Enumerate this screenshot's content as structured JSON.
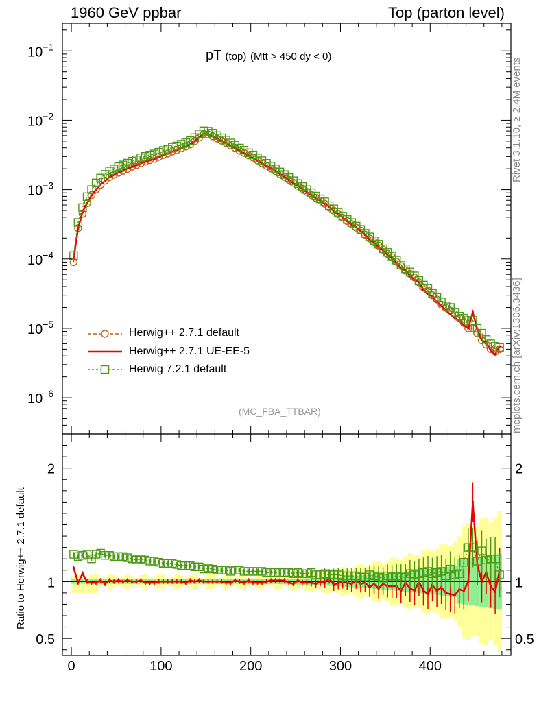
{
  "header": {
    "left": "1960 GeV ppbar",
    "right": "Top (parton level)"
  },
  "side_labels": {
    "rivet": "Rivet 3.1.10, ≥ 2.4M events",
    "mcplots": "mcplots.cern.ch [arXiv:1306.3436]"
  },
  "plot_title": {
    "main": "pT",
    "sub1": "(top)",
    "sub2": "(Mtt > 450 dy < 0)"
  },
  "analysis_label": "(MC_FBA_TTBAR)",
  "ratio_ylabel": "Ratio to Herwig++ 2.7.1 default",
  "colors": {
    "herwigpp_default": "#b8651a",
    "herwigpp_ueee5": "#ee0000",
    "herwig7": "#4c9a14",
    "band_inner": "#90ee90",
    "band_outer": "#ffff99"
  },
  "chart_data": {
    "type": "line",
    "x_range": [
      -10,
      490
    ],
    "main_ylim": [
      3e-07,
      0.25
    ],
    "main_yscale": "log",
    "ratio_ylim": [
      0.35,
      2.3
    ],
    "legend_placement": "bottom-left",
    "legend": [
      {
        "name": "Herwig++ 2.7.1 default",
        "series": "herwigpp_default"
      },
      {
        "name": "Herwig++ 2.7.1 UE-EE-5",
        "series": "herwigpp_ueee5"
      },
      {
        "name": "Herwig 7.2.1 default",
        "series": "herwig7"
      }
    ],
    "x_ticks": [
      {
        "value": 0,
        "label": "0"
      },
      {
        "value": 100,
        "label": "100"
      },
      {
        "value": 200,
        "label": "200"
      },
      {
        "value": 300,
        "label": "300"
      },
      {
        "value": 400,
        "label": "400"
      }
    ],
    "main_y_ticks": [
      {
        "value": 1e-06,
        "base": "10",
        "exp": "−6"
      },
      {
        "value": 1e-05,
        "base": "10",
        "exp": "−5"
      },
      {
        "value": 0.0001,
        "base": "10",
        "exp": "−4"
      },
      {
        "value": 0.001,
        "base": "10",
        "exp": "−3"
      },
      {
        "value": 0.01,
        "base": "10",
        "exp": "−2"
      },
      {
        "value": 0.1,
        "base": "10",
        "exp": "−1"
      }
    ],
    "ratio_y_ticks": [
      {
        "value": 0.5,
        "label": "0.5"
      },
      {
        "value": 1,
        "label": "1"
      },
      {
        "value": 2,
        "label": "2"
      }
    ],
    "x": [
      2.5,
      7.5,
      12.5,
      17.5,
      22.5,
      27.5,
      32.5,
      37.5,
      42.5,
      47.5,
      52.5,
      57.5,
      62.5,
      67.5,
      72.5,
      77.5,
      82.5,
      87.5,
      92.5,
      97.5,
      102.5,
      107.5,
      112.5,
      117.5,
      122.5,
      127.5,
      132.5,
      137.5,
      142.5,
      147.5,
      152.5,
      157.5,
      162.5,
      167.5,
      172.5,
      177.5,
      182.5,
      187.5,
      192.5,
      197.5,
      202.5,
      207.5,
      212.5,
      217.5,
      222.5,
      227.5,
      232.5,
      237.5,
      242.5,
      247.5,
      252.5,
      257.5,
      262.5,
      267.5,
      272.5,
      277.5,
      282.5,
      287.5,
      292.5,
      297.5,
      302.5,
      307.5,
      312.5,
      317.5,
      322.5,
      327.5,
      332.5,
      337.5,
      342.5,
      347.5,
      352.5,
      357.5,
      362.5,
      367.5,
      372.5,
      377.5,
      382.5,
      387.5,
      392.5,
      397.5,
      402.5,
      407.5,
      412.5,
      417.5,
      422.5,
      427.5,
      432.5,
      437.5,
      442.5,
      447.5,
      452.5,
      457.5,
      462.5,
      467.5,
      472.5,
      477.5
    ],
    "series": [
      {
        "key": "herwigpp_default",
        "name": "Herwig++ 2.7.1 default",
        "style": "dashed-circle",
        "values": [
          9e-05,
          0.000278,
          0.000448,
          0.000637,
          0.000834,
          0.001005,
          0.001174,
          0.001346,
          0.001511,
          0.001634,
          0.001753,
          0.001863,
          0.001993,
          0.002136,
          0.002255,
          0.002402,
          0.002535,
          0.002665,
          0.002779,
          0.002962,
          0.003147,
          0.00331,
          0.003534,
          0.003712,
          0.003949,
          0.004176,
          0.004471,
          0.004975,
          0.005628,
          0.006332,
          0.006227,
          0.005871,
          0.005446,
          0.005077,
          0.004702,
          0.004318,
          0.003985,
          0.003629,
          0.003378,
          0.003117,
          0.002894,
          0.002635,
          0.002406,
          0.002209,
          0.002013,
          0.001848,
          0.001667,
          0.001525,
          0.001385,
          0.001251,
          0.001136,
          0.001032,
          0.000929,
          0.000838,
          0.000759,
          0.000694,
          0.000626,
          0.000552,
          0.000499,
          0.000445,
          0.000394,
          0.000352,
          0.000319,
          0.000283,
          0.000256,
          0.000224,
          0.000197,
          0.000175,
          0.000156,
          0.000136,
          0.000118,
          0.000106,
          9.1e-05,
          7.9e-05,
          6.9e-05,
          6.1e-05,
          5.4e-05,
          4.6e-05,
          3.9e-05,
          3.5e-05,
          3e-05,
          2.6e-05,
          2.2e-05,
          2e-05,
          1.8e-05,
          1.6e-05,
          1.4e-05,
          1.2e-05,
          1e-05,
          1e-05,
          8.5e-06,
          6.7e-06,
          5.8e-06,
          5e-06,
          4.6e-06,
          5e-06
        ]
      },
      {
        "key": "herwigpp_ueee5",
        "name": "Herwig++ 2.7.1 UE-EE-5",
        "style": "solid",
        "values": [
          0.000101,
          0.000275,
          0.000481,
          0.000634,
          0.000827,
          0.000999,
          0.001186,
          0.001324,
          0.001521,
          0.001632,
          0.00177,
          0.001872,
          0.002011,
          0.00213,
          0.00225,
          0.002416,
          0.002522,
          0.002648,
          0.002755,
          0.002958,
          0.003153,
          0.003305,
          0.003541,
          0.003714,
          0.003961,
          0.004146,
          0.004506,
          0.00497,
          0.005657,
          0.006341,
          0.006209,
          0.005854,
          0.005457,
          0.005068,
          0.004679,
          0.004283,
          0.004021,
          0.003636,
          0.003344,
          0.003152,
          0.002867,
          0.002617,
          0.002381,
          0.002205,
          0.002043,
          0.001862,
          0.001682,
          0.001544,
          0.001376,
          0.001229,
          0.001147,
          0.001021,
          0.000919,
          0.000833,
          0.000747,
          0.000696,
          0.000623,
          0.000568,
          0.000485,
          0.000442,
          0.000394,
          0.00035,
          0.000312,
          0.000286,
          0.000252,
          0.000222,
          0.000187,
          0.000171,
          0.000147,
          0.000133,
          0.000113,
          0.000102,
          8.7e-05,
          7.3e-05,
          6.8e-05,
          5.7e-05,
          5e-05,
          4.6e-05,
          3.6e-05,
          3.1e-05,
          2.9e-05,
          2.4e-05,
          2.1e-05,
          1.8e-05,
          1.6e-05,
          1.4e-05,
          1.3e-05,
          1.1e-05,
          1e-05,
          1.7e-05,
          9.8e-06,
          6.7e-06,
          6.3e-06,
          4.8e-06,
          4.2e-06,
          5.5e-06
        ]
      },
      {
        "key": "herwig7",
        "name": "Herwig 7.2.1 default",
        "style": "dashed-square",
        "values": [
          0.000112,
          0.000336,
          0.00055,
          0.000792,
          0.000999,
          0.00125,
          0.001467,
          0.001659,
          0.001853,
          0.001988,
          0.002145,
          0.002267,
          0.002413,
          0.002569,
          0.00269,
          0.002876,
          0.003007,
          0.00315,
          0.003268,
          0.003469,
          0.003662,
          0.003826,
          0.00409,
          0.004263,
          0.004512,
          0.004739,
          0.005078,
          0.005623,
          0.006344,
          0.007053,
          0.006948,
          0.006513,
          0.006002,
          0.005575,
          0.005178,
          0.004715,
          0.004376,
          0.003977,
          0.003692,
          0.003393,
          0.003155,
          0.002866,
          0.002612,
          0.002394,
          0.002183,
          0.001994,
          0.001798,
          0.001649,
          0.001489,
          0.001343,
          0.001223,
          0.001108,
          0.000996,
          0.000903,
          0.000808,
          0.000737,
          0.000668,
          0.000586,
          0.000528,
          0.000471,
          0.000414,
          0.000371,
          0.000335,
          0.000298,
          0.000267,
          0.000234,
          0.000208,
          0.000183,
          0.000163,
          0.00014,
          0.000124,
          0.00011,
          9.6e-05,
          8.2e-05,
          7.2e-05,
          6.5e-05,
          5.7e-05,
          4.9e-05,
          4.2e-05,
          3.8e-05,
          3.2e-05,
          2.8e-05,
          2.4e-05,
          2.1e-05,
          2e-05,
          1.7e-05,
          1.5e-05,
          1.4e-05,
          1.3e-05,
          1.3e-05,
          1e-05,
          8.5e-06,
          6.9e-06,
          6e-06,
          5.5e-06,
          5.3e-06
        ]
      }
    ],
    "ratio_series": [
      {
        "key": "herwigpp_ueee5",
        "values": [
          1.12,
          0.99,
          1.07,
          1.0,
          0.99,
          0.99,
          1.01,
          0.98,
          1.01,
          1.0,
          1.01,
          1.0,
          1.01,
          1.0,
          1.0,
          1.01,
          0.99,
          0.99,
          0.99,
          1.0,
          1.0,
          1.0,
          1.0,
          1.0,
          1.0,
          0.99,
          1.01,
          1.0,
          1.01,
          1.0,
          1.0,
          1.0,
          1.0,
          1.0,
          0.99,
          0.99,
          1.01,
          1.0,
          0.99,
          1.01,
          0.99,
          0.99,
          0.99,
          1.0,
          1.01,
          1.01,
          1.01,
          1.01,
          0.99,
          0.98,
          1.01,
          0.99,
          0.99,
          0.99,
          0.98,
          1.0,
          0.99,
          1.03,
          0.97,
          0.99,
          1.0,
          0.99,
          0.98,
          1.01,
          0.98,
          0.99,
          0.95,
          0.98,
          0.94,
          0.98,
          0.96,
          0.96,
          0.96,
          0.92,
          0.99,
          0.94,
          0.92,
          1.0,
          0.92,
          0.89,
          0.97,
          0.92,
          0.95,
          0.9,
          0.89,
          0.88,
          0.93,
          0.92,
          1.0,
          1.7,
          1.15,
          1.0,
          1.08,
          0.96,
          0.91,
          1.1
        ]
      },
      {
        "key": "herwig7",
        "values": [
          1.24,
          1.22,
          1.23,
          1.24,
          1.2,
          1.24,
          1.25,
          1.23,
          1.23,
          1.22,
          1.22,
          1.22,
          1.21,
          1.2,
          1.19,
          1.2,
          1.19,
          1.18,
          1.18,
          1.17,
          1.16,
          1.16,
          1.16,
          1.15,
          1.14,
          1.14,
          1.14,
          1.13,
          1.13,
          1.11,
          1.12,
          1.11,
          1.1,
          1.1,
          1.1,
          1.09,
          1.1,
          1.1,
          1.09,
          1.09,
          1.09,
          1.09,
          1.09,
          1.08,
          1.08,
          1.08,
          1.08,
          1.08,
          1.08,
          1.07,
          1.08,
          1.07,
          1.07,
          1.08,
          1.06,
          1.06,
          1.07,
          1.06,
          1.06,
          1.06,
          1.05,
          1.05,
          1.05,
          1.05,
          1.04,
          1.04,
          1.06,
          1.05,
          1.04,
          1.03,
          1.05,
          1.04,
          1.05,
          1.04,
          1.04,
          1.07,
          1.06,
          1.07,
          1.08,
          1.09,
          1.07,
          1.08,
          1.09,
          1.05,
          1.11,
          1.06,
          1.07,
          1.17,
          1.3,
          1.3,
          1.18,
          1.27,
          1.19,
          1.2,
          1.2,
          1.06
        ]
      }
    ]
  }
}
